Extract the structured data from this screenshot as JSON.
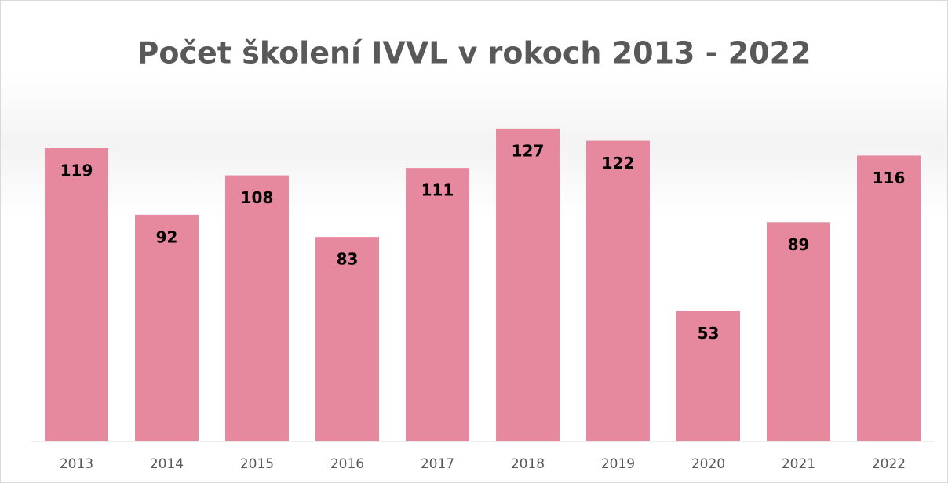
{
  "chart_data": {
    "type": "bar",
    "title": "Počet školení IVVL v rokoch 2013 - 2022",
    "categories": [
      "2013",
      "2014",
      "2015",
      "2016",
      "2017",
      "2018",
      "2019",
      "2020",
      "2021",
      "2022"
    ],
    "values": [
      119,
      92,
      108,
      83,
      111,
      127,
      122,
      53,
      89,
      116
    ],
    "color": "#e6899e",
    "ylim": [
      0,
      140
    ],
    "grid": false
  }
}
